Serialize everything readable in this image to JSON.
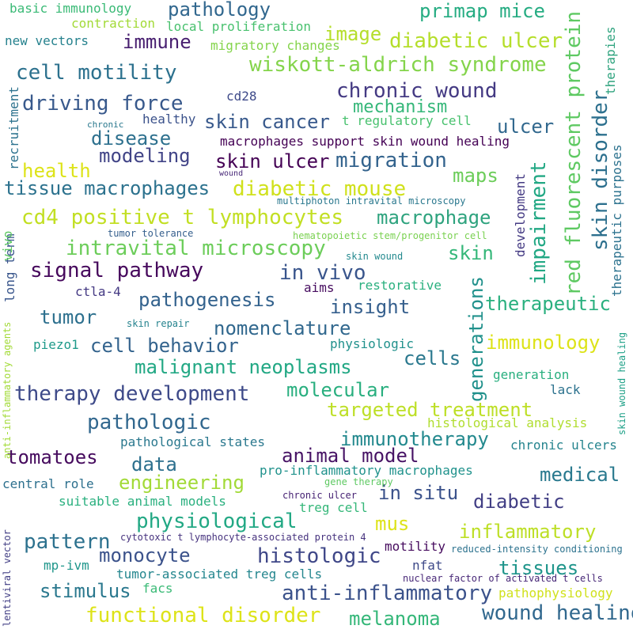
{
  "words": [
    {
      "text": "basic immunology",
      "color": "#3aba76"
    },
    {
      "text": "contraction",
      "color": "#a2da37"
    },
    {
      "text": "new vectors",
      "color": "#26828e"
    },
    {
      "text": "pathology",
      "color": "#31678e"
    },
    {
      "text": "primap mice",
      "color": "#25ac82"
    },
    {
      "text": "local proliferation",
      "color": "#48c16e"
    },
    {
      "text": "immune",
      "color": "#481f70"
    },
    {
      "text": "image",
      "color": "#b5de2b"
    },
    {
      "text": "diabetic ulcer",
      "color": "#b5de2b"
    },
    {
      "text": "migratory changes",
      "color": "#84d44b"
    },
    {
      "text": "wiskott-aldrich syndrome",
      "color": "#84d44b"
    },
    {
      "text": "cell motility",
      "color": "#2c718e"
    },
    {
      "text": "chronic wound",
      "color": "#443a83"
    },
    {
      "text": "cd28",
      "color": "#3e4a89"
    },
    {
      "text": "mechanism",
      "color": "#35b779"
    },
    {
      "text": "driving force",
      "color": "#38598c"
    },
    {
      "text": "skin cancer",
      "color": "#38598c"
    },
    {
      "text": "t regulatory cell",
      "color": "#48c16e"
    },
    {
      "text": "chronic",
      "color": "#2a788e"
    },
    {
      "text": "healthy",
      "color": "#3b528b"
    },
    {
      "text": "ulcer",
      "color": "#31688e"
    },
    {
      "text": "disease",
      "color": "#2d708e"
    },
    {
      "text": "macrophages support skin wound healing",
      "color": "#440154"
    },
    {
      "text": "modeling",
      "color": "#414487"
    },
    {
      "text": "skin ulcer",
      "color": "#440154"
    },
    {
      "text": "migration",
      "color": "#33638d"
    },
    {
      "text": "health",
      "color": "#dde318"
    },
    {
      "text": "wound",
      "color": "#482878"
    },
    {
      "text": "maps",
      "color": "#6ccd5a"
    },
    {
      "text": "tissue macrophages",
      "color": "#2c728e"
    },
    {
      "text": "diabetic mouse",
      "color": "#d0e11c"
    },
    {
      "text": "multiphoton intravital microscopy",
      "color": "#2a788e"
    },
    {
      "text": "cd4 positive t lymphocytes",
      "color": "#c2df23"
    },
    {
      "text": "macrophage",
      "color": "#2ea37e"
    },
    {
      "text": "tumor tolerance",
      "color": "#355f8d"
    },
    {
      "text": "hematopoietic stem/progenitor cell",
      "color": "#7ad151"
    },
    {
      "text": "intravital microscopy",
      "color": "#6ccd5a"
    },
    {
      "text": "skin",
      "color": "#35b779"
    },
    {
      "text": "skin wound",
      "color": "#23898e"
    },
    {
      "text": "signal pathway",
      "color": "#46085c"
    },
    {
      "text": "in vivo",
      "color": "#39558c"
    },
    {
      "text": "aims",
      "color": "#470d60"
    },
    {
      "text": "restorative",
      "color": "#2ab07f"
    },
    {
      "text": "ctla-4",
      "color": "#443983"
    },
    {
      "text": "pathogenesis",
      "color": "#33628d"
    },
    {
      "text": "insight",
      "color": "#355f8d"
    },
    {
      "text": "therapeutic",
      "color": "#2ab07f"
    },
    {
      "text": "tumor",
      "color": "#2d708e"
    },
    {
      "text": "skin repair",
      "color": "#25838e"
    },
    {
      "text": "nomenclature",
      "color": "#31688e"
    },
    {
      "text": "piezo1",
      "color": "#1f9a8a"
    },
    {
      "text": "physiologic",
      "color": "#21918c"
    },
    {
      "text": "cell behavior",
      "color": "#33638d"
    },
    {
      "text": "immunology",
      "color": "#dde318"
    },
    {
      "text": "cells",
      "color": "#2a788e"
    },
    {
      "text": "malignant neoplasms",
      "color": "#22a884"
    },
    {
      "text": "generation",
      "color": "#29af7f"
    },
    {
      "text": "molecular",
      "color": "#29af7f"
    },
    {
      "text": "therapy development",
      "color": "#3e4a89"
    },
    {
      "text": "lack",
      "color": "#2c728e"
    },
    {
      "text": "targeted treatment",
      "color": "#bddf26"
    },
    {
      "text": "pathologic",
      "color": "#31678e"
    },
    {
      "text": "histological analysis",
      "color": "#b0dd2f"
    },
    {
      "text": "pathological states",
      "color": "#2a788e"
    },
    {
      "text": "immunotherapy",
      "color": "#23898e"
    },
    {
      "text": "chronic ulcers",
      "color": "#25848e"
    },
    {
      "text": "tomatoes",
      "color": "#460b5e"
    },
    {
      "text": "data",
      "color": "#2d708e"
    },
    {
      "text": "animal model",
      "color": "#471365"
    },
    {
      "text": "engineering",
      "color": "#a2da37"
    },
    {
      "text": "pro-inflammatory macrophages",
      "color": "#20928c"
    },
    {
      "text": "medical",
      "color": "#29798e"
    },
    {
      "text": "central role",
      "color": "#2d708e"
    },
    {
      "text": "gene therapy",
      "color": "#5ec962"
    },
    {
      "text": "in situ",
      "color": "#3b528b"
    },
    {
      "text": "suitable animal models",
      "color": "#2ab07f"
    },
    {
      "text": "chronic ulcer",
      "color": "#482475"
    },
    {
      "text": "diabetic",
      "color": "#423f85"
    },
    {
      "text": "treg cell",
      "color": "#35b779"
    },
    {
      "text": "physiological",
      "color": "#22a884"
    },
    {
      "text": "mus",
      "color": "#dde318"
    },
    {
      "text": "inflammatory",
      "color": "#bddf26"
    },
    {
      "text": "pattern",
      "color": "#2c718e"
    },
    {
      "text": "monocyte",
      "color": "#3b528b"
    },
    {
      "text": "cytotoxic t lymphocyte-associated protein 4",
      "color": "#46327e"
    },
    {
      "text": "histologic",
      "color": "#3f4788"
    },
    {
      "text": "motility",
      "color": "#460b5e"
    },
    {
      "text": "reduced-intensity conditioning",
      "color": "#2c728e"
    },
    {
      "text": "mp-ivm",
      "color": "#1f968b"
    },
    {
      "text": "nfat",
      "color": "#3e4a89"
    },
    {
      "text": "tissues",
      "color": "#1f958b"
    },
    {
      "text": "tumor-associated treg cells",
      "color": "#24868e"
    },
    {
      "text": "nuclear factor of activated t cells",
      "color": "#482878"
    },
    {
      "text": "stimulus",
      "color": "#2a788e"
    },
    {
      "text": "facs",
      "color": "#3aba76"
    },
    {
      "text": "anti-inflammatory",
      "color": "#3b528b"
    },
    {
      "text": "pathophysiology",
      "color": "#d0e11c"
    },
    {
      "text": "functional disorder",
      "color": "#dde318"
    },
    {
      "text": "melanoma",
      "color": "#35b779"
    },
    {
      "text": "wound healing",
      "color": "#31688e"
    },
    {
      "text": "therapies",
      "color": "#2ea37e"
    },
    {
      "text": "red fluorescent protein",
      "color": "#5ec962"
    },
    {
      "text": "skin disorder",
      "color": "#2d708e"
    },
    {
      "text": "impairment",
      "color": "#22a884"
    },
    {
      "text": "therapeutic purposes",
      "color": "#2c728e"
    },
    {
      "text": "development",
      "color": "#443a83"
    },
    {
      "text": "generations",
      "color": "#21918c"
    },
    {
      "text": "recruitment",
      "color": "#2c728e"
    },
    {
      "text": "long term",
      "color": "#39568c"
    },
    {
      "text": "vivo",
      "color": "#5ec962"
    },
    {
      "text": "anti-inflammatory agents",
      "color": "#a2da37"
    },
    {
      "text": "skin wound healing",
      "color": "#1fa188"
    },
    {
      "text": "lentiviral vector",
      "color": "#423f85"
    }
  ]
}
